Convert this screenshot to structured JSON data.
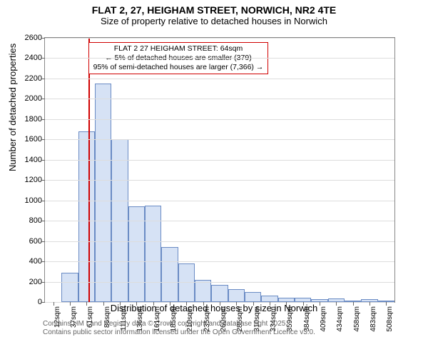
{
  "titles": {
    "main": "FLAT 2, 27, HEIGHAM STREET, NORWICH, NR2 4TE",
    "sub": "Size of property relative to detached houses in Norwich"
  },
  "chart": {
    "type": "histogram",
    "ylabel": "Number of detached properties",
    "xlabel": "Distribution of detached houses by size in Norwich",
    "ylim": [
      0,
      2600
    ],
    "ytick_step": 200,
    "xticks": [
      "12sqm",
      "37sqm",
      "61sqm",
      "86sqm",
      "111sqm",
      "136sqm",
      "161sqm",
      "185sqm",
      "210sqm",
      "235sqm",
      "260sqm",
      "285sqm",
      "310sqm",
      "334sqm",
      "359sqm",
      "384sqm",
      "409sqm",
      "434sqm",
      "458sqm",
      "483sqm",
      "508sqm"
    ],
    "values": [
      0,
      290,
      1680,
      2150,
      1600,
      940,
      950,
      540,
      380,
      220,
      170,
      130,
      100,
      60,
      40,
      45,
      25,
      38,
      8,
      30,
      8
    ],
    "bar_fill": "#d6e2f5",
    "bar_border": "#6a8bc4",
    "grid_color": "#dddddd",
    "axis_color": "#888888",
    "marker": {
      "position_index": 2.12,
      "color": "#d00000"
    },
    "annotation": {
      "line1": "FLAT 2 27 HEIGHAM STREET: 64sqm",
      "line2": "← 5% of detached houses are smaller (379)",
      "line3": "95% of semi-detached houses are larger (7,366) →",
      "left_bin": 2.1,
      "width_bins": 10.4,
      "top_value": 2560,
      "border_color": "#d00000"
    }
  },
  "footer": {
    "line1": "Contains HM Land Registry data © Crown copyright and database right 2025.",
    "line2": "Contains public sector information licensed under the Open Government Licence v3.0."
  },
  "style": {
    "title_fontsize": 14,
    "sub_fontsize": 13,
    "label_fontsize": 13,
    "tick_fontsize": 11,
    "xtick_fontsize": 10,
    "annotation_fontsize": 10.5,
    "footer_fontsize": 10,
    "footer_color": "#666666",
    "background": "#ffffff"
  }
}
